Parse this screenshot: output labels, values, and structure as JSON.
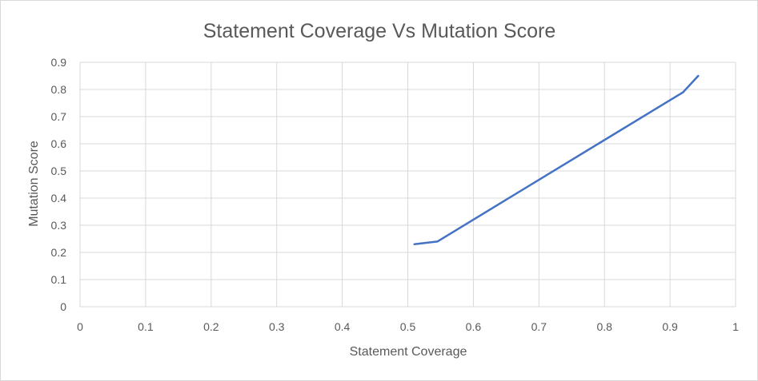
{
  "chart_data": {
    "type": "line",
    "title": "Statement Coverage Vs Mutation Score",
    "xlabel": "Statement Coverage",
    "ylabel": "Mutation Score",
    "xlim": [
      0,
      1
    ],
    "ylim": [
      0,
      0.9
    ],
    "x_ticks": [
      "0",
      "0.1",
      "0.2",
      "0.3",
      "0.4",
      "0.5",
      "0.6",
      "0.7",
      "0.8",
      "0.9",
      "1"
    ],
    "y_ticks": [
      "0",
      "0.1",
      "0.2",
      "0.3",
      "0.4",
      "0.5",
      "0.6",
      "0.7",
      "0.8",
      "0.9"
    ],
    "grid": true,
    "legend": "none",
    "series": [
      {
        "color": "#4472c4",
        "points": [
          {
            "x": 0.51,
            "y": 0.23
          },
          {
            "x": 0.545,
            "y": 0.24
          },
          {
            "x": 0.92,
            "y": 0.79
          },
          {
            "x": 0.943,
            "y": 0.85
          }
        ]
      }
    ]
  }
}
